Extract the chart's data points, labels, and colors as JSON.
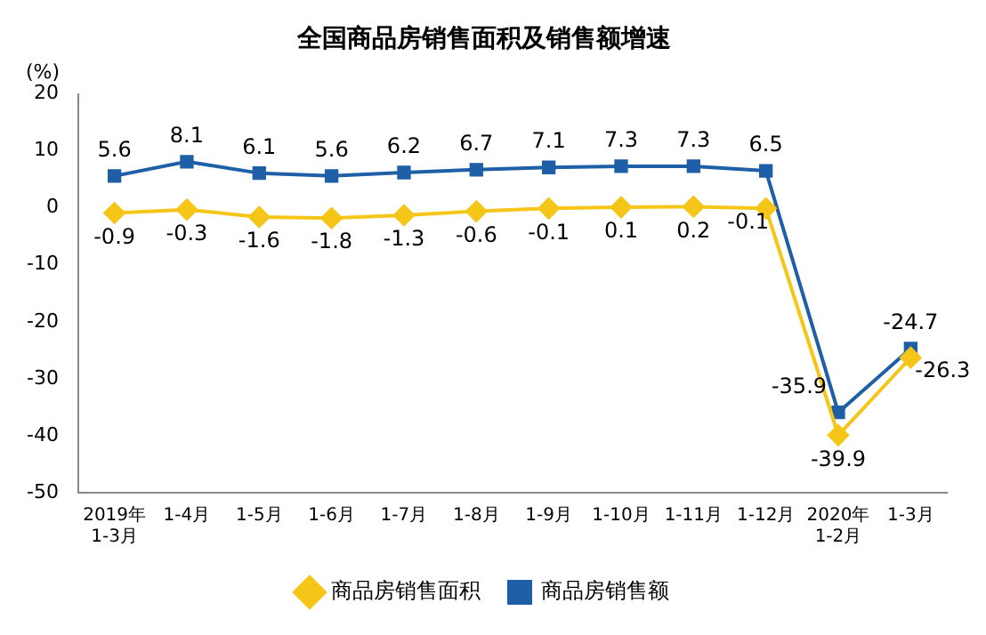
{
  "chart_data": {
    "type": "line",
    "title": "全国商品房销售面积及销售额增速",
    "ylabel": "(%)",
    "categories": [
      "2019年\n1-3月",
      "1-4月",
      "1-5月",
      "1-6月",
      "1-7月",
      "1-8月",
      "1-9月",
      "1-10月",
      "1-11月",
      "1-12月",
      "2020年\n1-2月",
      "1-3月"
    ],
    "series": [
      {
        "name": "商品房销售面积",
        "color": "#f5c518",
        "marker": "diamond",
        "values": [
          -0.9,
          -0.3,
          -1.6,
          -1.8,
          -1.3,
          -0.6,
          -0.1,
          0.1,
          0.2,
          -0.1,
          -39.9,
          -26.3
        ]
      },
      {
        "name": "商品房销售额",
        "color": "#1f5fa8",
        "marker": "square",
        "values": [
          5.6,
          8.1,
          6.1,
          5.6,
          6.2,
          6.7,
          7.1,
          7.3,
          7.3,
          6.5,
          -35.9,
          -24.7
        ]
      }
    ],
    "ylim": [
      -50,
      20
    ],
    "yticks": [
      -50,
      -40,
      -30,
      -20,
      -10,
      0,
      10,
      20
    ],
    "grid": false,
    "legend": "bottom",
    "data_labels": true
  }
}
